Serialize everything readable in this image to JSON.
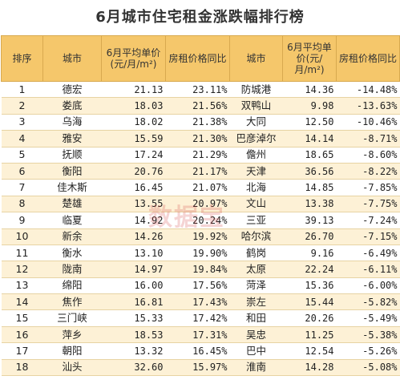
{
  "title": "6月城市住宅租金涨跌幅排行榜",
  "header": {
    "rank": "排序",
    "city": "城市",
    "avg_price": "6月平均单价(元/月/m²)",
    "yoy": "房租价格同比",
    "city2": "城市",
    "avg_price2": "6月平均单价(元/月/m²)",
    "yoy2": "房租价格同比"
  },
  "rows": [
    {
      "rank": "1",
      "city": "德宏",
      "price": "21.13",
      "yoy": "23.11%",
      "city2": "防城港",
      "price2": "14.36",
      "yoy2": "-14.48%"
    },
    {
      "rank": "2",
      "city": "娄底",
      "price": "18.03",
      "yoy": "21.56%",
      "city2": "双鸭山",
      "price2": "9.98",
      "yoy2": "-13.63%"
    },
    {
      "rank": "3",
      "city": "乌海",
      "price": "18.02",
      "yoy": "21.38%",
      "city2": "大同",
      "price2": "12.50",
      "yoy2": "-10.46%"
    },
    {
      "rank": "4",
      "city": "雅安",
      "price": "15.59",
      "yoy": "21.30%",
      "city2": "巴彦淖尔",
      "price2": "14.14",
      "yoy2": "-8.71%"
    },
    {
      "rank": "5",
      "city": "抚顺",
      "price": "17.24",
      "yoy": "21.29%",
      "city2": "儋州",
      "price2": "18.65",
      "yoy2": "-8.60%"
    },
    {
      "rank": "6",
      "city": "衡阳",
      "price": "20.76",
      "yoy": "21.17%",
      "city2": "天津",
      "price2": "36.56",
      "yoy2": "-8.22%"
    },
    {
      "rank": "7",
      "city": "佳木斯",
      "price": "16.45",
      "yoy": "21.07%",
      "city2": "北海",
      "price2": "14.85",
      "yoy2": "-7.85%"
    },
    {
      "rank": "8",
      "city": "楚雄",
      "price": "13.55",
      "yoy": "20.97%",
      "city2": "文山",
      "price2": "13.38",
      "yoy2": "-7.75%"
    },
    {
      "rank": "9",
      "city": "临夏",
      "price": "14.92",
      "yoy": "20.24%",
      "city2": "三亚",
      "price2": "39.13",
      "yoy2": "-7.24%"
    },
    {
      "rank": "10",
      "city": "新余",
      "price": "14.26",
      "yoy": "19.92%",
      "city2": "哈尔滨",
      "price2": "26.70",
      "yoy2": "-7.15%"
    },
    {
      "rank": "11",
      "city": "衡水",
      "price": "13.10",
      "yoy": "19.90%",
      "city2": "鹤岗",
      "price2": "9.16",
      "yoy2": "-6.49%"
    },
    {
      "rank": "12",
      "city": "陇南",
      "price": "14.97",
      "yoy": "19.84%",
      "city2": "太原",
      "price2": "22.24",
      "yoy2": "-6.11%"
    },
    {
      "rank": "13",
      "city": "绵阳",
      "price": "16.00",
      "yoy": "17.56%",
      "city2": "菏泽",
      "price2": "15.36",
      "yoy2": "-6.00%"
    },
    {
      "rank": "14",
      "city": "焦作",
      "price": "16.81",
      "yoy": "17.43%",
      "city2": "崇左",
      "price2": "15.44",
      "yoy2": "-5.82%"
    },
    {
      "rank": "15",
      "city": "三门峡",
      "price": "15.33",
      "yoy": "17.42%",
      "city2": "和田",
      "price2": "20.26",
      "yoy2": "-5.49%"
    },
    {
      "rank": "16",
      "city": "萍乡",
      "price": "18.53",
      "yoy": "17.31%",
      "city2": "吴忠",
      "price2": "11.25",
      "yoy2": "-5.38%"
    },
    {
      "rank": "17",
      "city": "朝阳",
      "price": "13.32",
      "yoy": "16.45%",
      "city2": "巴中",
      "price2": "12.54",
      "yoy2": "-5.26%"
    },
    {
      "rank": "18",
      "city": "汕头",
      "price": "32.60",
      "yoy": "15.97%",
      "city2": "淮南",
      "price2": "14.28",
      "yoy2": "-5.08%"
    }
  ],
  "watermark": "数据宝"
}
